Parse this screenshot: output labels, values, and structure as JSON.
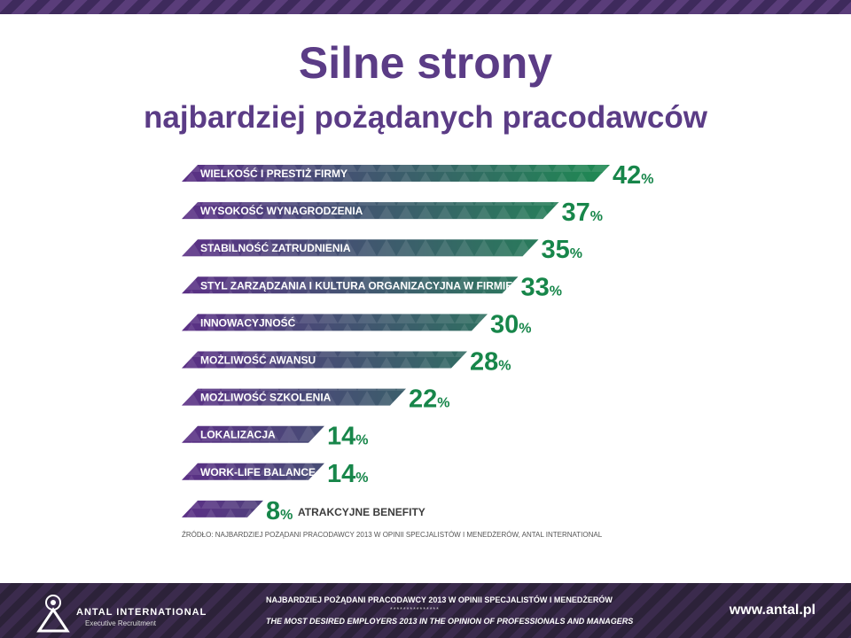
{
  "header": {
    "title": "Silne strony",
    "subtitle": "najbardziej pożądanych pracodawców"
  },
  "chart_data": {
    "type": "bar",
    "orientation": "horizontal",
    "categories": [
      "WIELKOŚĆ I PRESTIŻ FIRMY",
      "WYSOKOŚĆ WYNAGRODZENIA",
      "STABILNOŚĆ ZATRUDNIENIA",
      "STYL ZARZĄDZANIA I KULTURA ORGANIZACYJNA W FIRMIE",
      "INNOWACYJNOŚĆ",
      "MOŻLIWOŚĆ AWANSU",
      "MOŻLIWOŚĆ SZKOLENIA",
      "LOKALIZACJA",
      "WORK-LIFE BALANCE",
      "ATRAKCYJNE BENEFITY"
    ],
    "values": [
      42,
      37,
      35,
      33,
      30,
      28,
      22,
      14,
      14,
      8
    ],
    "value_labels": [
      "42",
      "37",
      "35",
      "33",
      "30",
      "28",
      "22",
      "14",
      "14",
      "8"
    ],
    "unit": "%",
    "xlim": [
      0,
      42
    ],
    "gradient": [
      "#5b2f86",
      "#1e8a52"
    ],
    "value_color": "#17864a",
    "source": "ŹRÓDŁO: NAJBARDZIEJ POŻĄDANI PRACODAWCY 2013 W OPINII SPECJALISTÓW I MENEDŻERÓW, ANTAL INTERNATIONAL"
  },
  "footer": {
    "brand_name": "ANTAL INTERNATIONAL",
    "brand_sub": "Executive Recruitment",
    "line_pl": "NAJBARDZIEJ POŻĄDANI PRACODAWCY 2013 W OPINII SPECJALISTÓW I MENEDŻERÓW",
    "stars": "***************",
    "line_en": "THE MOST DESIRED EMPLOYERS 2013 IN THE OPINION OF PROFESSIONALS AND MANAGERS",
    "url": "www.antal.pl"
  }
}
